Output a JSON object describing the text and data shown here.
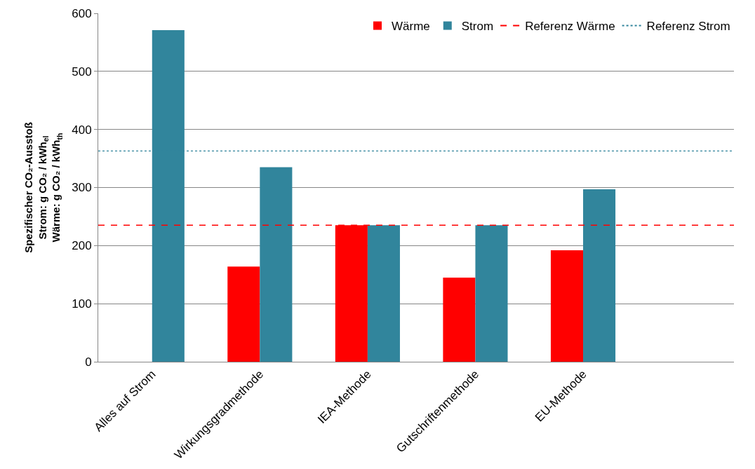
{
  "chart_data": {
    "type": "bar",
    "ylabel": "Spezifischer CO₂-Ausstoß\nStrom: g CO₂ / kWh$_{el}$\nWärme: g CO₂ / kWh$_{th}$",
    "categories": [
      "Alles auf Strom",
      "Wirkungsgradmethode",
      "IEA-Methode",
      "Gutschriftenmethode",
      "EU-Methode"
    ],
    "series": [
      {
        "name": "Wärme",
        "color": "#ff0000",
        "values": [
          null,
          164,
          235,
          145,
          192
        ]
      },
      {
        "name": "Strom",
        "color": "#31859c",
        "values": [
          571,
          335,
          235,
          235,
          297
        ]
      }
    ],
    "ref_lines": [
      {
        "axis": "y",
        "value": 235,
        "label": "Referenz Wärme",
        "color": "#ff0000",
        "line_style": "dashed"
      },
      {
        "axis": "y",
        "value": 363,
        "label": "Referenz Strom",
        "color": "#31859c",
        "line_style": "dotted"
      }
    ],
    "ylim": [
      0,
      600
    ],
    "yticks": [
      0,
      100,
      200,
      300,
      400,
      500,
      600
    ],
    "grid": "y",
    "legend": "top right"
  }
}
